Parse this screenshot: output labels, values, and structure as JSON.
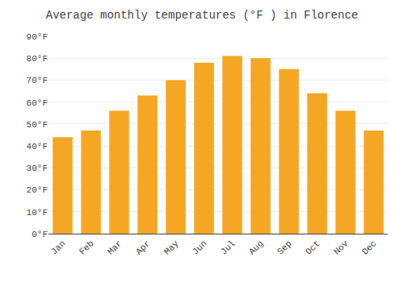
{
  "chart_data": {
    "type": "bar",
    "title": "Average monthly temperatures (°F ) in Florence",
    "categories": [
      "Jan",
      "Feb",
      "Mar",
      "Apr",
      "May",
      "Jun",
      "Jul",
      "Aug",
      "Sep",
      "Oct",
      "Nov",
      "Dec"
    ],
    "values": [
      44,
      47,
      56,
      63,
      70,
      78,
      81,
      80,
      75,
      64,
      56,
      47
    ],
    "color": "#F5A623",
    "ylim": [
      0,
      90
    ],
    "yticks": [
      {
        "value": 0,
        "label": "0°F"
      },
      {
        "value": 10,
        "label": "10°F"
      },
      {
        "value": 20,
        "label": "20°F"
      },
      {
        "value": 30,
        "label": "30°F"
      },
      {
        "value": 40,
        "label": "40°F"
      },
      {
        "value": 50,
        "label": "50°F"
      },
      {
        "value": 60,
        "label": "60°F"
      },
      {
        "value": 70,
        "label": "70°F"
      },
      {
        "value": 80,
        "label": "80°F"
      },
      {
        "value": 90,
        "label": "90°F"
      }
    ],
    "grid": true
  }
}
